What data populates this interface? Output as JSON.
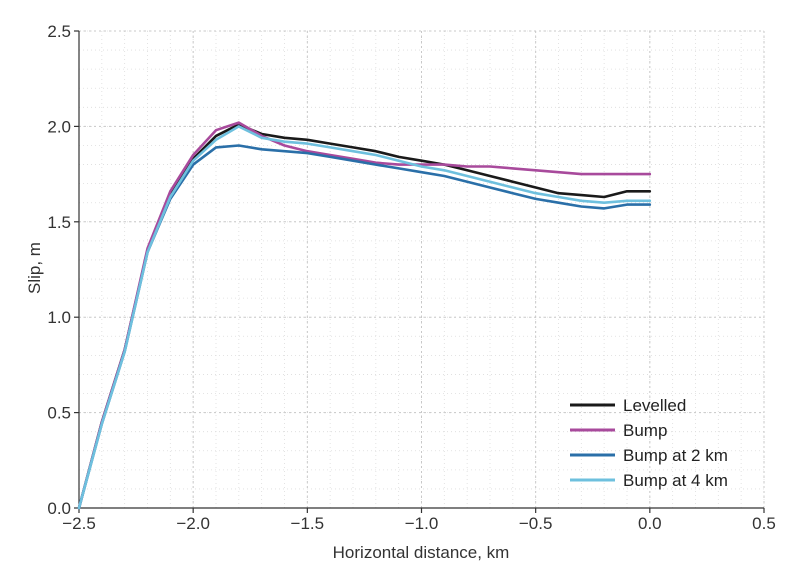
{
  "chart_data": {
    "type": "line",
    "title": "",
    "xlabel": "Horizontal distance, km",
    "ylabel": "Slip, m",
    "xlim": [
      -2.5,
      0.5
    ],
    "ylim": [
      0.0,
      2.5
    ],
    "xticks": [
      -2.5,
      -2.0,
      -1.5,
      -1.0,
      -0.5,
      0.0,
      0.5
    ],
    "xtick_labels": [
      "−2.5",
      "−2.0",
      "−1.5",
      "−1.0",
      "−0.5",
      "0.0",
      "0.5"
    ],
    "yticks": [
      0.0,
      0.5,
      1.0,
      1.5,
      2.0,
      2.5
    ],
    "ytick_labels": [
      "0.0",
      "0.5",
      "1.0",
      "1.5",
      "2.0",
      "2.5"
    ],
    "grid": true,
    "legend_position": "bottom-right",
    "series": [
      {
        "name": "Levelled",
        "color": "#1a1a1a",
        "x": [
          -2.5,
          -2.4,
          -2.3,
          -2.2,
          -2.1,
          -2.0,
          -1.9,
          -1.8,
          -1.7,
          -1.6,
          -1.5,
          -1.4,
          -1.3,
          -1.2,
          -1.1,
          -1.0,
          -0.9,
          -0.8,
          -0.7,
          -0.6,
          -0.5,
          -0.4,
          -0.3,
          -0.2,
          -0.1,
          0.0
        ],
        "y": [
          0.0,
          0.45,
          0.83,
          1.35,
          1.65,
          1.83,
          1.95,
          2.01,
          1.96,
          1.94,
          1.93,
          1.91,
          1.89,
          1.87,
          1.84,
          1.82,
          1.8,
          1.77,
          1.74,
          1.71,
          1.68,
          1.65,
          1.64,
          1.63,
          1.66,
          1.66
        ]
      },
      {
        "name": "Bump",
        "color": "#a84a9c",
        "x": [
          -2.5,
          -2.4,
          -2.3,
          -2.2,
          -2.1,
          -2.0,
          -1.9,
          -1.8,
          -1.7,
          -1.6,
          -1.5,
          -1.4,
          -1.3,
          -1.2,
          -1.1,
          -1.0,
          -0.9,
          -0.8,
          -0.7,
          -0.6,
          -0.5,
          -0.4,
          -0.3,
          -0.2,
          -0.1,
          0.0
        ],
        "y": [
          0.0,
          0.45,
          0.83,
          1.36,
          1.66,
          1.85,
          1.98,
          2.02,
          1.95,
          1.9,
          1.87,
          1.85,
          1.83,
          1.81,
          1.8,
          1.8,
          1.8,
          1.79,
          1.79,
          1.78,
          1.77,
          1.76,
          1.75,
          1.75,
          1.75,
          1.75
        ]
      },
      {
        "name": "Bump at 2 km",
        "color": "#2a6fa8",
        "x": [
          -2.5,
          -2.4,
          -2.3,
          -2.2,
          -2.1,
          -2.0,
          -1.9,
          -1.8,
          -1.7,
          -1.6,
          -1.5,
          -1.4,
          -1.3,
          -1.2,
          -1.1,
          -1.0,
          -0.9,
          -0.8,
          -0.7,
          -0.6,
          -0.5,
          -0.4,
          -0.3,
          -0.2,
          -0.1,
          0.0
        ],
        "y": [
          0.0,
          0.44,
          0.82,
          1.34,
          1.62,
          1.8,
          1.89,
          1.9,
          1.88,
          1.87,
          1.86,
          1.84,
          1.82,
          1.8,
          1.78,
          1.76,
          1.74,
          1.71,
          1.68,
          1.65,
          1.62,
          1.6,
          1.58,
          1.57,
          1.59,
          1.59
        ]
      },
      {
        "name": "Bump at 4 km",
        "color": "#6ec0de",
        "x": [
          -2.5,
          -2.4,
          -2.3,
          -2.2,
          -2.1,
          -2.0,
          -1.9,
          -1.8,
          -1.7,
          -1.6,
          -1.5,
          -1.4,
          -1.3,
          -1.2,
          -1.1,
          -1.0,
          -0.9,
          -0.8,
          -0.7,
          -0.6,
          -0.5,
          -0.4,
          -0.3,
          -0.2,
          -0.1,
          0.0
        ],
        "y": [
          0.0,
          0.44,
          0.82,
          1.34,
          1.63,
          1.82,
          1.93,
          2.0,
          1.94,
          1.92,
          1.91,
          1.89,
          1.87,
          1.85,
          1.82,
          1.79,
          1.77,
          1.74,
          1.71,
          1.68,
          1.65,
          1.63,
          1.61,
          1.6,
          1.61,
          1.61
        ]
      }
    ]
  }
}
